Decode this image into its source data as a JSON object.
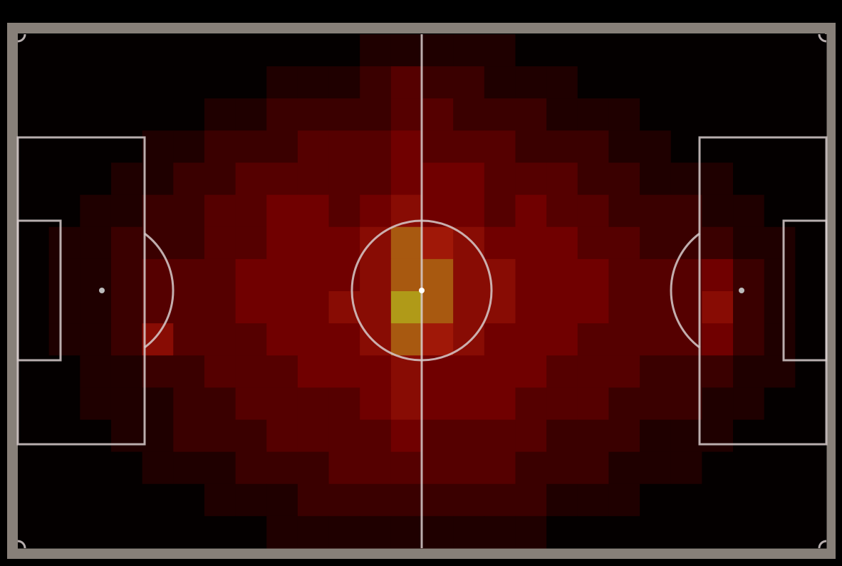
{
  "chart_data": {
    "type": "heatmap",
    "values": [
      [
        0,
        0,
        0,
        0,
        0,
        0,
        0,
        0,
        0,
        0,
        0,
        1,
        1,
        1,
        1,
        1,
        0,
        0,
        0,
        0,
        0,
        0,
        0,
        0,
        0,
        0
      ],
      [
        0,
        0,
        0,
        0,
        0,
        0,
        0,
        0,
        1,
        1,
        1,
        2,
        3,
        2,
        2,
        1,
        1,
        1,
        0,
        0,
        0,
        0,
        0,
        0,
        0,
        0
      ],
      [
        0,
        0,
        0,
        0,
        0,
        0,
        1,
        1,
        2,
        2,
        2,
        2,
        3,
        3,
        2,
        2,
        2,
        1,
        1,
        1,
        0,
        0,
        0,
        0,
        0,
        0
      ],
      [
        0,
        0,
        0,
        0,
        1,
        1,
        2,
        2,
        2,
        3,
        3,
        3,
        4,
        3,
        3,
        3,
        2,
        2,
        2,
        1,
        1,
        0,
        0,
        0,
        0,
        0
      ],
      [
        0,
        0,
        0,
        1,
        1,
        2,
        2,
        3,
        3,
        3,
        3,
        3,
        4,
        4,
        4,
        3,
        3,
        3,
        2,
        2,
        1,
        1,
        1,
        0,
        0,
        0
      ],
      [
        0,
        0,
        1,
        1,
        2,
        2,
        3,
        3,
        4,
        4,
        3,
        4,
        5,
        4,
        4,
        3,
        4,
        3,
        3,
        2,
        2,
        2,
        1,
        1,
        0,
        0
      ],
      [
        0,
        1,
        1,
        2,
        2,
        2,
        3,
        3,
        4,
        4,
        4,
        5,
        7,
        6,
        5,
        4,
        4,
        4,
        3,
        3,
        2,
        2,
        2,
        1,
        1,
        0
      ],
      [
        0,
        1,
        1,
        2,
        3,
        3,
        3,
        4,
        4,
        4,
        4,
        5,
        7,
        7,
        5,
        5,
        4,
        4,
        4,
        3,
        3,
        3,
        4,
        2,
        1,
        0
      ],
      [
        0,
        1,
        1,
        2,
        3,
        3,
        3,
        4,
        4,
        4,
        5,
        5,
        8,
        7,
        5,
        5,
        4,
        4,
        4,
        3,
        3,
        3,
        5,
        2,
        1,
        0
      ],
      [
        0,
        1,
        1,
        2,
        5,
        3,
        3,
        3,
        4,
        4,
        4,
        5,
        7,
        6,
        5,
        4,
        4,
        4,
        3,
        3,
        3,
        3,
        4,
        2,
        1,
        0
      ],
      [
        0,
        0,
        1,
        1,
        2,
        2,
        3,
        3,
        3,
        4,
        4,
        4,
        5,
        4,
        4,
        4,
        4,
        3,
        3,
        3,
        2,
        2,
        2,
        1,
        1,
        0
      ],
      [
        0,
        0,
        1,
        1,
        1,
        2,
        2,
        3,
        3,
        3,
        3,
        4,
        5,
        4,
        4,
        4,
        3,
        3,
        3,
        2,
        2,
        2,
        1,
        1,
        0,
        0
      ],
      [
        0,
        0,
        0,
        1,
        1,
        2,
        2,
        2,
        3,
        3,
        3,
        3,
        4,
        3,
        3,
        3,
        3,
        2,
        2,
        2,
        1,
        1,
        1,
        0,
        0,
        0
      ],
      [
        0,
        0,
        0,
        0,
        1,
        1,
        1,
        2,
        2,
        2,
        3,
        3,
        3,
        3,
        3,
        3,
        2,
        2,
        2,
        1,
        1,
        1,
        0,
        0,
        0,
        0
      ],
      [
        0,
        0,
        0,
        0,
        0,
        0,
        1,
        1,
        1,
        2,
        2,
        2,
        2,
        2,
        2,
        2,
        2,
        1,
        1,
        1,
        0,
        0,
        0,
        0,
        0,
        0
      ],
      [
        0,
        0,
        0,
        0,
        0,
        0,
        0,
        0,
        1,
        1,
        1,
        1,
        1,
        1,
        1,
        1,
        1,
        0,
        0,
        0,
        0,
        0,
        0,
        0,
        0,
        0
      ]
    ],
    "vlim": [
      0,
      8
    ],
    "colorscale": [
      "#040000",
      "#3a0000",
      "#700000",
      "#a01808",
      "#b09a18"
    ]
  }
}
